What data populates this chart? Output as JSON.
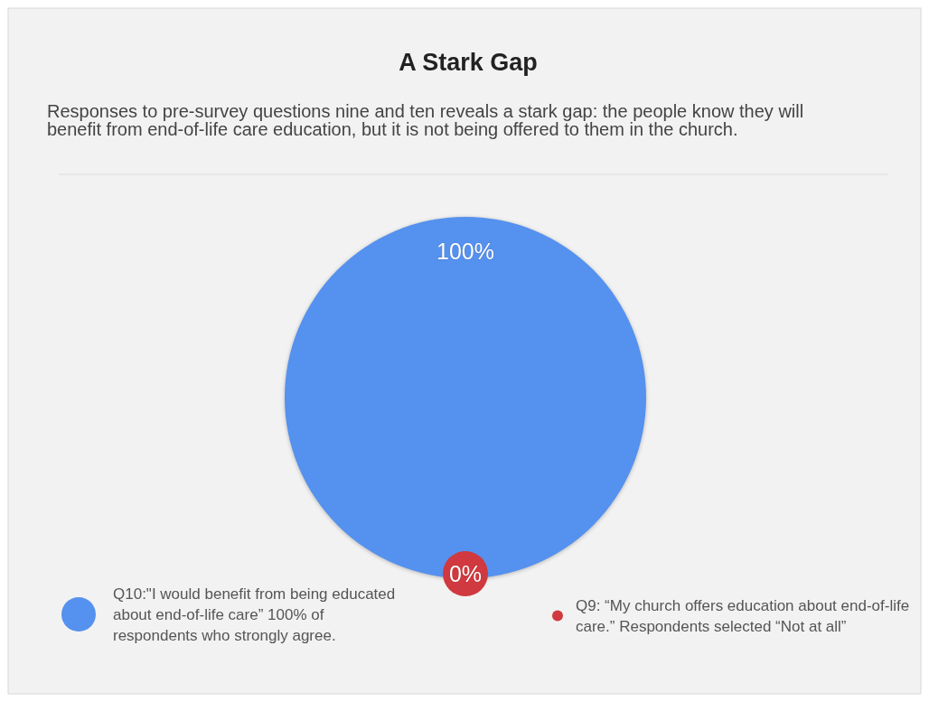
{
  "chart_data": {
    "type": "pie",
    "title": "A Stark Gap",
    "subtitle": "Responses to pre-survey questions nine and ten reveals a stark gap: the people know they will benefit from end-of-life care education, but it is not being offered to them in the church.",
    "categories": [
      "Q10:\"I would benefit from being educated about end-of-life care” 100% of respondents who strongly agree.",
      "Q9: “My church offers education about end-of-life care.” Respondents selected “Not at all”"
    ],
    "values": [
      100,
      0
    ],
    "colors": [
      "#5591ee",
      "#d0393f"
    ],
    "value_labels": [
      "100%",
      "0%"
    ],
    "legend": "bottom"
  }
}
